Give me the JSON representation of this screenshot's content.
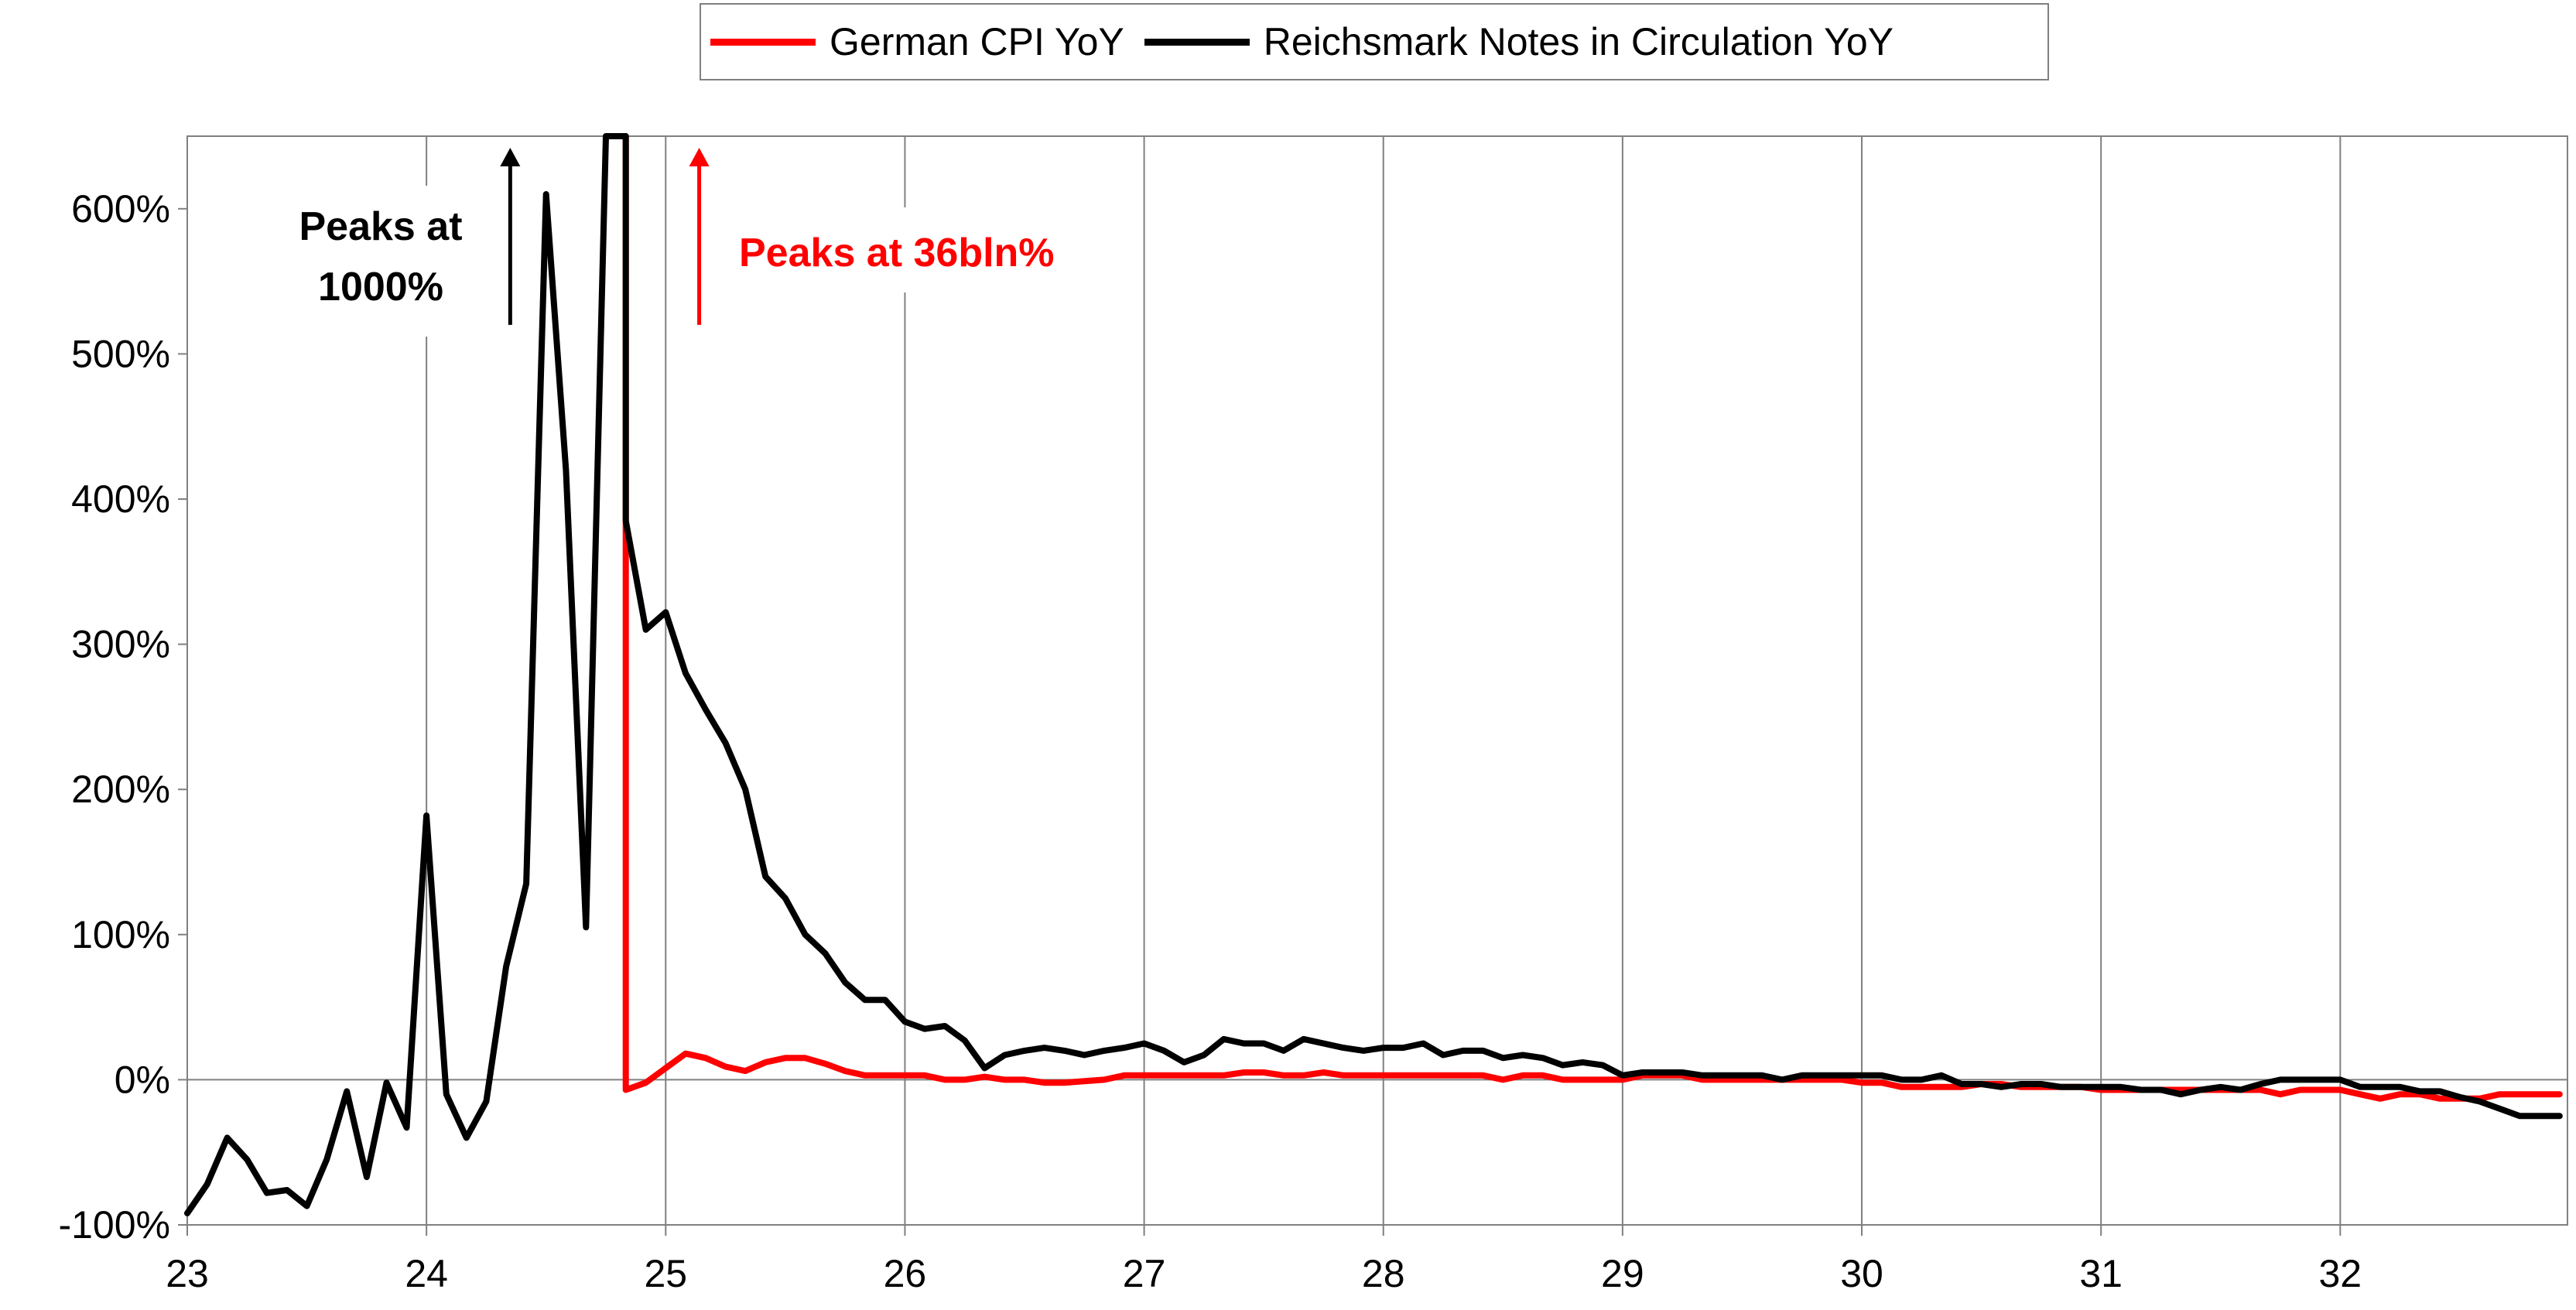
{
  "chart_data": {
    "type": "line",
    "title": "",
    "xlabel": "",
    "ylabel": "",
    "x_ticks": [
      "23",
      "24",
      "25",
      "26",
      "27",
      "28",
      "29",
      "30",
      "31",
      "32"
    ],
    "y_ticks": [
      "-100%",
      "0%",
      "100%",
      "200%",
      "300%",
      "400%",
      "500%",
      "600%"
    ],
    "xlim": [
      1923.0,
      1932.95
    ],
    "ylim": [
      -100,
      650
    ],
    "grid": "vertical gridlines at each year",
    "legend_position": "top-center",
    "series": [
      {
        "name": "German CPI YoY",
        "color": "#ff0000",
        "points": [
          [
            1924.833,
            650
          ],
          [
            1924.833,
            -7
          ],
          [
            1924.917,
            -2
          ],
          [
            1925.0,
            8
          ],
          [
            1925.083,
            18
          ],
          [
            1925.167,
            15
          ],
          [
            1925.25,
            9
          ],
          [
            1925.333,
            6
          ],
          [
            1925.417,
            12
          ],
          [
            1925.5,
            15
          ],
          [
            1925.583,
            15
          ],
          [
            1925.667,
            11
          ],
          [
            1925.75,
            6
          ],
          [
            1925.833,
            3
          ],
          [
            1925.917,
            3
          ],
          [
            1926.0,
            3
          ],
          [
            1926.083,
            3
          ],
          [
            1926.167,
            0
          ],
          [
            1926.25,
            0
          ],
          [
            1926.333,
            2
          ],
          [
            1926.417,
            0
          ],
          [
            1926.5,
            0
          ],
          [
            1926.583,
            -2
          ],
          [
            1926.667,
            -2
          ],
          [
            1926.75,
            -1
          ],
          [
            1926.833,
            0
          ],
          [
            1926.917,
            3
          ],
          [
            1927.0,
            3
          ],
          [
            1927.083,
            3
          ],
          [
            1927.167,
            3
          ],
          [
            1927.25,
            3
          ],
          [
            1927.333,
            3
          ],
          [
            1927.417,
            5
          ],
          [
            1927.5,
            5
          ],
          [
            1927.583,
            3
          ],
          [
            1927.667,
            3
          ],
          [
            1927.75,
            5
          ],
          [
            1927.833,
            3
          ],
          [
            1927.917,
            3
          ],
          [
            1928.0,
            3
          ],
          [
            1928.083,
            3
          ],
          [
            1928.167,
            3
          ],
          [
            1928.25,
            3
          ],
          [
            1928.333,
            3
          ],
          [
            1928.417,
            3
          ],
          [
            1928.5,
            0
          ],
          [
            1928.583,
            3
          ],
          [
            1928.667,
            3
          ],
          [
            1928.75,
            0
          ],
          [
            1928.833,
            0
          ],
          [
            1928.917,
            0
          ],
          [
            1929.0,
            0
          ],
          [
            1929.083,
            3
          ],
          [
            1929.167,
            3
          ],
          [
            1929.25,
            3
          ],
          [
            1929.333,
            0
          ],
          [
            1929.417,
            0
          ],
          [
            1929.5,
            0
          ],
          [
            1929.583,
            0
          ],
          [
            1929.667,
            0
          ],
          [
            1929.75,
            0
          ],
          [
            1929.833,
            0
          ],
          [
            1929.917,
            0
          ],
          [
            1930.0,
            -2
          ],
          [
            1930.083,
            -2
          ],
          [
            1930.167,
            -5
          ],
          [
            1930.25,
            -5
          ],
          [
            1930.333,
            -5
          ],
          [
            1930.417,
            -5
          ],
          [
            1930.5,
            -3
          ],
          [
            1930.583,
            -3
          ],
          [
            1930.667,
            -5
          ],
          [
            1930.75,
            -5
          ],
          [
            1930.833,
            -5
          ],
          [
            1930.917,
            -5
          ],
          [
            1931.0,
            -7
          ],
          [
            1931.083,
            -7
          ],
          [
            1931.167,
            -7
          ],
          [
            1931.25,
            -7
          ],
          [
            1931.333,
            -7
          ],
          [
            1931.417,
            -7
          ],
          [
            1931.5,
            -7
          ],
          [
            1931.583,
            -7
          ],
          [
            1931.667,
            -7
          ],
          [
            1931.75,
            -10
          ],
          [
            1931.833,
            -7
          ],
          [
            1931.917,
            -7
          ],
          [
            1932.0,
            -7
          ],
          [
            1932.083,
            -10
          ],
          [
            1932.167,
            -13
          ],
          [
            1932.25,
            -10
          ],
          [
            1932.333,
            -10
          ],
          [
            1932.417,
            -13
          ],
          [
            1932.5,
            -13
          ],
          [
            1932.583,
            -13
          ],
          [
            1932.667,
            -10
          ],
          [
            1932.75,
            -10
          ],
          [
            1932.833,
            -10
          ],
          [
            1932.917,
            -10
          ]
        ]
      },
      {
        "name": "Reichsmark Notes in Circulation YoY",
        "color": "#000000",
        "points": [
          [
            1923.0,
            -92
          ],
          [
            1923.083,
            -72
          ],
          [
            1923.167,
            -40
          ],
          [
            1923.25,
            -55
          ],
          [
            1923.333,
            -78
          ],
          [
            1923.417,
            -76
          ],
          [
            1923.5,
            -87
          ],
          [
            1923.583,
            -55
          ],
          [
            1923.667,
            -8
          ],
          [
            1923.75,
            -67
          ],
          [
            1923.833,
            -2
          ],
          [
            1923.917,
            -33
          ],
          [
            1924.0,
            182
          ],
          [
            1924.083,
            -10
          ],
          [
            1924.167,
            -40
          ],
          [
            1924.25,
            -15
          ],
          [
            1924.333,
            78
          ],
          [
            1924.417,
            135
          ],
          [
            1924.5,
            610
          ],
          [
            1924.583,
            420
          ],
          [
            1924.667,
            105
          ],
          [
            1924.75,
            650
          ],
          [
            1924.833,
            650
          ],
          [
            1924.833,
            385
          ],
          [
            1924.917,
            310
          ],
          [
            1925.0,
            322
          ],
          [
            1925.083,
            280
          ],
          [
            1925.167,
            255
          ],
          [
            1925.25,
            232
          ],
          [
            1925.333,
            200
          ],
          [
            1925.417,
            140
          ],
          [
            1925.5,
            125
          ],
          [
            1925.583,
            100
          ],
          [
            1925.667,
            87
          ],
          [
            1925.75,
            67
          ],
          [
            1925.833,
            55
          ],
          [
            1925.917,
            55
          ],
          [
            1926.0,
            40
          ],
          [
            1926.083,
            35
          ],
          [
            1926.167,
            37
          ],
          [
            1926.25,
            27
          ],
          [
            1926.333,
            8
          ],
          [
            1926.417,
            17
          ],
          [
            1926.5,
            20
          ],
          [
            1926.583,
            22
          ],
          [
            1926.667,
            20
          ],
          [
            1926.75,
            17
          ],
          [
            1926.833,
            20
          ],
          [
            1926.917,
            22
          ],
          [
            1927.0,
            25
          ],
          [
            1927.083,
            20
          ],
          [
            1927.167,
            12
          ],
          [
            1927.25,
            17
          ],
          [
            1927.333,
            28
          ],
          [
            1927.417,
            25
          ],
          [
            1927.5,
            25
          ],
          [
            1927.583,
            20
          ],
          [
            1927.667,
            28
          ],
          [
            1927.75,
            25
          ],
          [
            1927.833,
            22
          ],
          [
            1927.917,
            20
          ],
          [
            1928.0,
            22
          ],
          [
            1928.083,
            22
          ],
          [
            1928.167,
            25
          ],
          [
            1928.25,
            17
          ],
          [
            1928.333,
            20
          ],
          [
            1928.417,
            20
          ],
          [
            1928.5,
            15
          ],
          [
            1928.583,
            17
          ],
          [
            1928.667,
            15
          ],
          [
            1928.75,
            10
          ],
          [
            1928.833,
            12
          ],
          [
            1928.917,
            10
          ],
          [
            1929.0,
            3
          ],
          [
            1929.083,
            5
          ],
          [
            1929.167,
            5
          ],
          [
            1929.25,
            5
          ],
          [
            1929.333,
            3
          ],
          [
            1929.417,
            3
          ],
          [
            1929.5,
            3
          ],
          [
            1929.583,
            3
          ],
          [
            1929.667,
            0
          ],
          [
            1929.75,
            3
          ],
          [
            1929.833,
            3
          ],
          [
            1929.917,
            3
          ],
          [
            1930.0,
            3
          ],
          [
            1930.083,
            3
          ],
          [
            1930.167,
            0
          ],
          [
            1930.25,
            0
          ],
          [
            1930.333,
            3
          ],
          [
            1930.417,
            -3
          ],
          [
            1930.5,
            -3
          ],
          [
            1930.583,
            -5
          ],
          [
            1930.667,
            -3
          ],
          [
            1930.75,
            -3
          ],
          [
            1930.833,
            -5
          ],
          [
            1930.917,
            -5
          ],
          [
            1931.0,
            -5
          ],
          [
            1931.083,
            -5
          ],
          [
            1931.167,
            -7
          ],
          [
            1931.25,
            -7
          ],
          [
            1931.333,
            -10
          ],
          [
            1931.417,
            -7
          ],
          [
            1931.5,
            -5
          ],
          [
            1931.583,
            -7
          ],
          [
            1931.667,
            -3
          ],
          [
            1931.75,
            0
          ],
          [
            1931.833,
            0
          ],
          [
            1931.917,
            0
          ],
          [
            1932.0,
            0
          ],
          [
            1932.083,
            -5
          ],
          [
            1932.167,
            -5
          ],
          [
            1932.25,
            -5
          ],
          [
            1932.333,
            -8
          ],
          [
            1932.417,
            -8
          ],
          [
            1932.5,
            -12
          ],
          [
            1932.583,
            -15
          ],
          [
            1932.667,
            -20
          ],
          [
            1932.75,
            -25
          ],
          [
            1932.833,
            -25
          ],
          [
            1932.917,
            -25
          ]
        ]
      }
    ],
    "annotations": [
      {
        "text_lines": [
          "Peaks at",
          "1000%"
        ],
        "color": "#000000",
        "arrow_x": 1924.35,
        "arrow_y": [
          520,
          642
        ]
      },
      {
        "text_lines": [
          "Peaks at 36bln%"
        ],
        "color": "#ff0000",
        "arrow_x": 1925.14,
        "arrow_y": [
          520,
          642
        ]
      }
    ]
  }
}
